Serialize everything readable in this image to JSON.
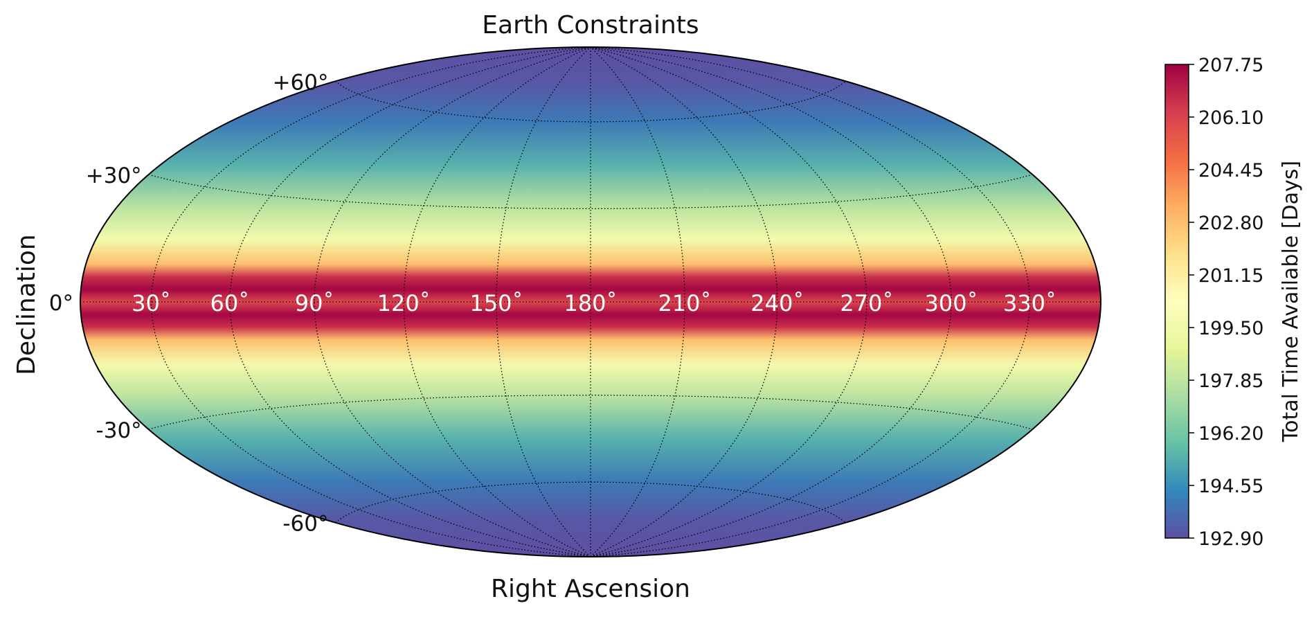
{
  "chart_data": {
    "type": "heatmap",
    "projection": "hammer (all-sky)",
    "title": "Earth Constraints",
    "xlabel": "Right Ascension",
    "ylabel": "Declination",
    "colorbar_label": "Total Time Available [Days]",
    "colormap": "Spectral_r",
    "colormap_stops": [
      "#5e4fa2",
      "#3288bd",
      "#66c2a5",
      "#abdda4",
      "#e6f598",
      "#ffffbf",
      "#fee08b",
      "#fdae61",
      "#f46d43",
      "#d53e4f",
      "#9e0142"
    ],
    "vmin": 192.9,
    "vmax": 207.75,
    "colorbar_ticks": [
      "192.90",
      "194.55",
      "196.20",
      "197.85",
      "199.50",
      "201.15",
      "202.80",
      "204.45",
      "206.10",
      "207.75"
    ],
    "ra_tick_labels": [
      "30˚",
      "60˚",
      "90˚",
      "120˚",
      "150˚",
      "180˚",
      "210˚",
      "240˚",
      "270˚",
      "300˚",
      "330˚"
    ],
    "dec_tick_labels": [
      "+60°",
      "+30°",
      "0°",
      "-30°",
      "-60°"
    ],
    "grid": "dotted",
    "legend": "colorbar right",
    "profile": {
      "declination_deg": [
        -90,
        -75,
        -60,
        -45,
        -30,
        -20,
        -12,
        -8,
        -4,
        0,
        4,
        8,
        12,
        20,
        30,
        45,
        60,
        75,
        90
      ],
      "total_time_days": [
        192.9,
        193.1,
        194.0,
        195.4,
        197.8,
        199.6,
        202.8,
        206.6,
        207.6,
        206.0,
        207.6,
        206.6,
        202.8,
        199.6,
        197.8,
        195.4,
        194.0,
        193.1,
        192.9
      ]
    }
  }
}
